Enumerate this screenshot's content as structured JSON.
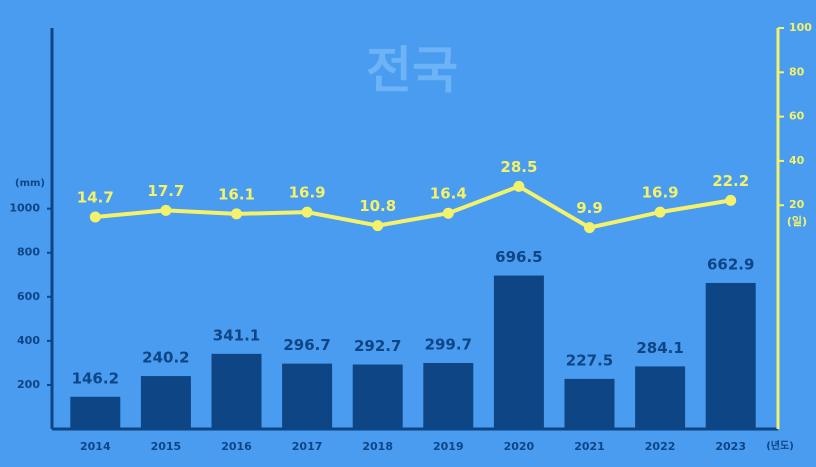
{
  "chart_data": {
    "type": "bar-line",
    "title": "전국",
    "y_unit": "(mm)",
    "y2_unit": "(일)",
    "x_unit": "(년도)",
    "categories": [
      "2014",
      "2015",
      "2016",
      "2017",
      "2018",
      "2019",
      "2020",
      "2021",
      "2022",
      "2023"
    ],
    "series": [
      {
        "type": "bar",
        "color": "#0e4585",
        "values": [
          146.2,
          240.2,
          341.1,
          296.7,
          292.7,
          299.7,
          696.5,
          227.5,
          284.1,
          662.9
        ]
      },
      {
        "type": "line",
        "axis": "y2",
        "color": "#f3f26a",
        "values": [
          14.7,
          17.7,
          16.1,
          16.9,
          10.8,
          16.4,
          28.5,
          9.9,
          16.9,
          22.2
        ]
      }
    ],
    "ylim": [
      0,
      1820
    ],
    "yticks": [
      200,
      400,
      600,
      800,
      1000
    ],
    "y2lim": [
      -81,
      100
    ],
    "y2ticks": [
      20,
      40,
      60,
      80,
      100
    ]
  }
}
